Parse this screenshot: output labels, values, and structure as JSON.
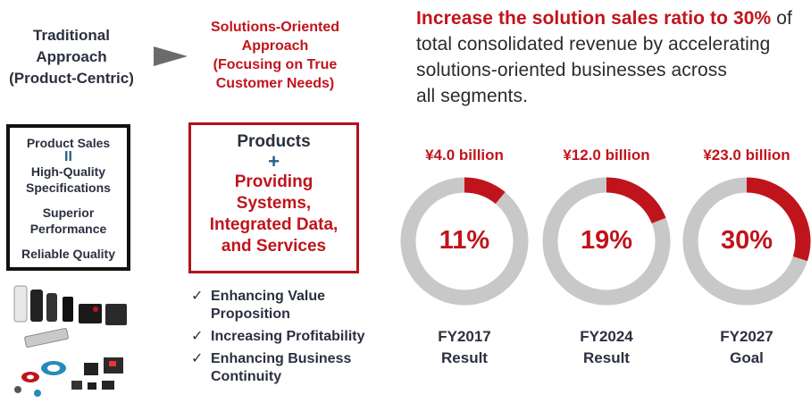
{
  "left": {
    "traditional": [
      "Traditional",
      "Approach",
      "(Product-Centric)"
    ],
    "solutions": [
      "Solutions-Oriented",
      "Approach",
      "(Focusing on True",
      "Customer Needs)"
    ],
    "product_box": {
      "line1": "Product Sales",
      "eq": "II",
      "line2a": "High-Quality",
      "line2b": "Specifications",
      "line3a": "Superior",
      "line3b": "Performance",
      "line4": "Reliable Quality"
    },
    "solution_box": {
      "products": "Products",
      "plus": "+",
      "services": [
        "Providing",
        "Systems,",
        "Integrated Data,",
        "and Services"
      ]
    },
    "checks": [
      {
        "mark": "✓",
        "lines": [
          "Enhancing Value",
          "Proposition"
        ]
      },
      {
        "mark": "✓",
        "lines": [
          "Increasing Profitability"
        ]
      },
      {
        "mark": "✓",
        "lines": [
          "Enhancing Business",
          "Continuity"
        ]
      }
    ]
  },
  "headline": {
    "emphasis": "Increase the solution sales ratio to 30%",
    "rest1": " of",
    "line2": "total consolidated revenue by accelerating",
    "line3": "solutions-oriented businesses across",
    "line4": "all segments."
  },
  "colors": {
    "accent": "#c0141c",
    "track": "#c8c8c8",
    "text": "#2b3040"
  },
  "chart_data": {
    "type": "pie",
    "charts": [
      {
        "amount": "¥4.0 billion",
        "value": 11,
        "label": "11%",
        "period": "FY2017",
        "status": "Result"
      },
      {
        "amount": "¥12.0 billion",
        "value": 19,
        "label": "19%",
        "period": "FY2024",
        "status": "Result"
      },
      {
        "amount": "¥23.0 billion",
        "value": 30,
        "label": "30%",
        "period": "FY2027",
        "status": "Goal"
      }
    ]
  }
}
